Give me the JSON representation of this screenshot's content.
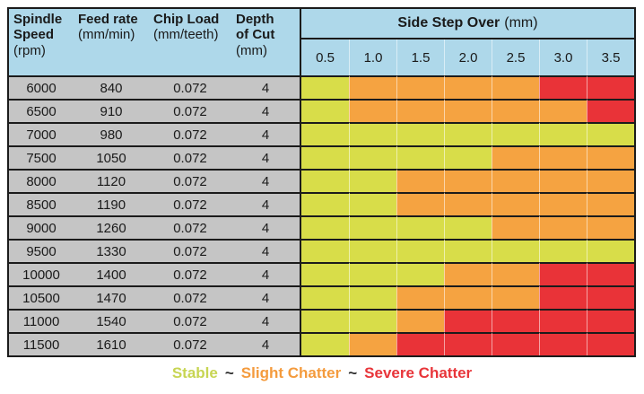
{
  "colors": {
    "header_bg": "#AED8EA",
    "param_bg": "#C5C5C5",
    "border": "#1B1B1B",
    "stable": "#D8DD49",
    "slight-chatter": "#F5A341",
    "severe-chatter": "#E93338",
    "legend_stable_text": "#C7D552",
    "legend_slight_text": "#F49B3D",
    "legend_severe_text": "#E8353A",
    "legend_separator_text": "#2B2B2B"
  },
  "header": {
    "param_columns": [
      {
        "lines": [
          "Spindle",
          "Speed"
        ],
        "unit": "(rpm)"
      },
      {
        "lines": [
          "Feed rate"
        ],
        "unit": "(mm/min)"
      },
      {
        "lines": [
          "Chip Load"
        ],
        "unit": "(mm/teeth)"
      },
      {
        "lines": [
          "Depth",
          "of Cut"
        ],
        "unit": "(mm)"
      }
    ],
    "group_title": "Side Step Over",
    "group_unit": "(mm)",
    "step_values": [
      "0.5",
      "1.0",
      "1.5",
      "2.0",
      "2.5",
      "3.0",
      "3.5"
    ]
  },
  "legend": {
    "separator": "~",
    "items": [
      {
        "label": "Stable",
        "key": "stable"
      },
      {
        "label": "Slight Chatter",
        "key": "slight-chatter"
      },
      {
        "label": "Severe Chatter",
        "key": "severe-chatter"
      }
    ]
  },
  "chart_data": {
    "type": "heatmap",
    "title": "Side Step Over (mm)",
    "param_headers": [
      "Spindle Speed (rpm)",
      "Feed rate (mm/min)",
      "Chip Load (mm/teeth)",
      "Depth of Cut (mm)"
    ],
    "columns": [
      0.5,
      1.0,
      1.5,
      2.0,
      2.5,
      3.0,
      3.5
    ],
    "legend": [
      "Stable",
      "Slight Chatter",
      "Severe Chatter"
    ],
    "rows": [
      {
        "spindle_speed": 6000,
        "feed_rate": 840,
        "chip_load": 0.072,
        "depth_of_cut": 4,
        "stability": [
          "stable",
          "slight-chatter",
          "slight-chatter",
          "slight-chatter",
          "slight-chatter",
          "severe-chatter",
          "severe-chatter"
        ]
      },
      {
        "spindle_speed": 6500,
        "feed_rate": 910,
        "chip_load": 0.072,
        "depth_of_cut": 4,
        "stability": [
          "stable",
          "slight-chatter",
          "slight-chatter",
          "slight-chatter",
          "slight-chatter",
          "slight-chatter",
          "severe-chatter"
        ]
      },
      {
        "spindle_speed": 7000,
        "feed_rate": 980,
        "chip_load": 0.072,
        "depth_of_cut": 4,
        "stability": [
          "stable",
          "stable",
          "stable",
          "stable",
          "stable",
          "stable",
          "stable"
        ]
      },
      {
        "spindle_speed": 7500,
        "feed_rate": 1050,
        "chip_load": 0.072,
        "depth_of_cut": 4,
        "stability": [
          "stable",
          "stable",
          "stable",
          "stable",
          "slight-chatter",
          "slight-chatter",
          "slight-chatter"
        ]
      },
      {
        "spindle_speed": 8000,
        "feed_rate": 1120,
        "chip_load": 0.072,
        "depth_of_cut": 4,
        "stability": [
          "stable",
          "stable",
          "slight-chatter",
          "slight-chatter",
          "slight-chatter",
          "slight-chatter",
          "slight-chatter"
        ]
      },
      {
        "spindle_speed": 8500,
        "feed_rate": 1190,
        "chip_load": 0.072,
        "depth_of_cut": 4,
        "stability": [
          "stable",
          "stable",
          "slight-chatter",
          "slight-chatter",
          "slight-chatter",
          "slight-chatter",
          "slight-chatter"
        ]
      },
      {
        "spindle_speed": 9000,
        "feed_rate": 1260,
        "chip_load": 0.072,
        "depth_of_cut": 4,
        "stability": [
          "stable",
          "stable",
          "stable",
          "stable",
          "slight-chatter",
          "slight-chatter",
          "slight-chatter"
        ]
      },
      {
        "spindle_speed": 9500,
        "feed_rate": 1330,
        "chip_load": 0.072,
        "depth_of_cut": 4,
        "stability": [
          "stable",
          "stable",
          "stable",
          "stable",
          "stable",
          "stable",
          "stable"
        ]
      },
      {
        "spindle_speed": 10000,
        "feed_rate": 1400,
        "chip_load": 0.072,
        "depth_of_cut": 4,
        "stability": [
          "stable",
          "stable",
          "stable",
          "slight-chatter",
          "slight-chatter",
          "severe-chatter",
          "severe-chatter"
        ]
      },
      {
        "spindle_speed": 10500,
        "feed_rate": 1470,
        "chip_load": 0.072,
        "depth_of_cut": 4,
        "stability": [
          "stable",
          "stable",
          "slight-chatter",
          "slight-chatter",
          "slight-chatter",
          "severe-chatter",
          "severe-chatter"
        ]
      },
      {
        "spindle_speed": 11000,
        "feed_rate": 1540,
        "chip_load": 0.072,
        "depth_of_cut": 4,
        "stability": [
          "stable",
          "stable",
          "slight-chatter",
          "severe-chatter",
          "severe-chatter",
          "severe-chatter",
          "severe-chatter"
        ]
      },
      {
        "spindle_speed": 11500,
        "feed_rate": 1610,
        "chip_load": 0.072,
        "depth_of_cut": 4,
        "stability": [
          "stable",
          "slight-chatter",
          "severe-chatter",
          "severe-chatter",
          "severe-chatter",
          "severe-chatter",
          "severe-chatter"
        ]
      }
    ]
  }
}
